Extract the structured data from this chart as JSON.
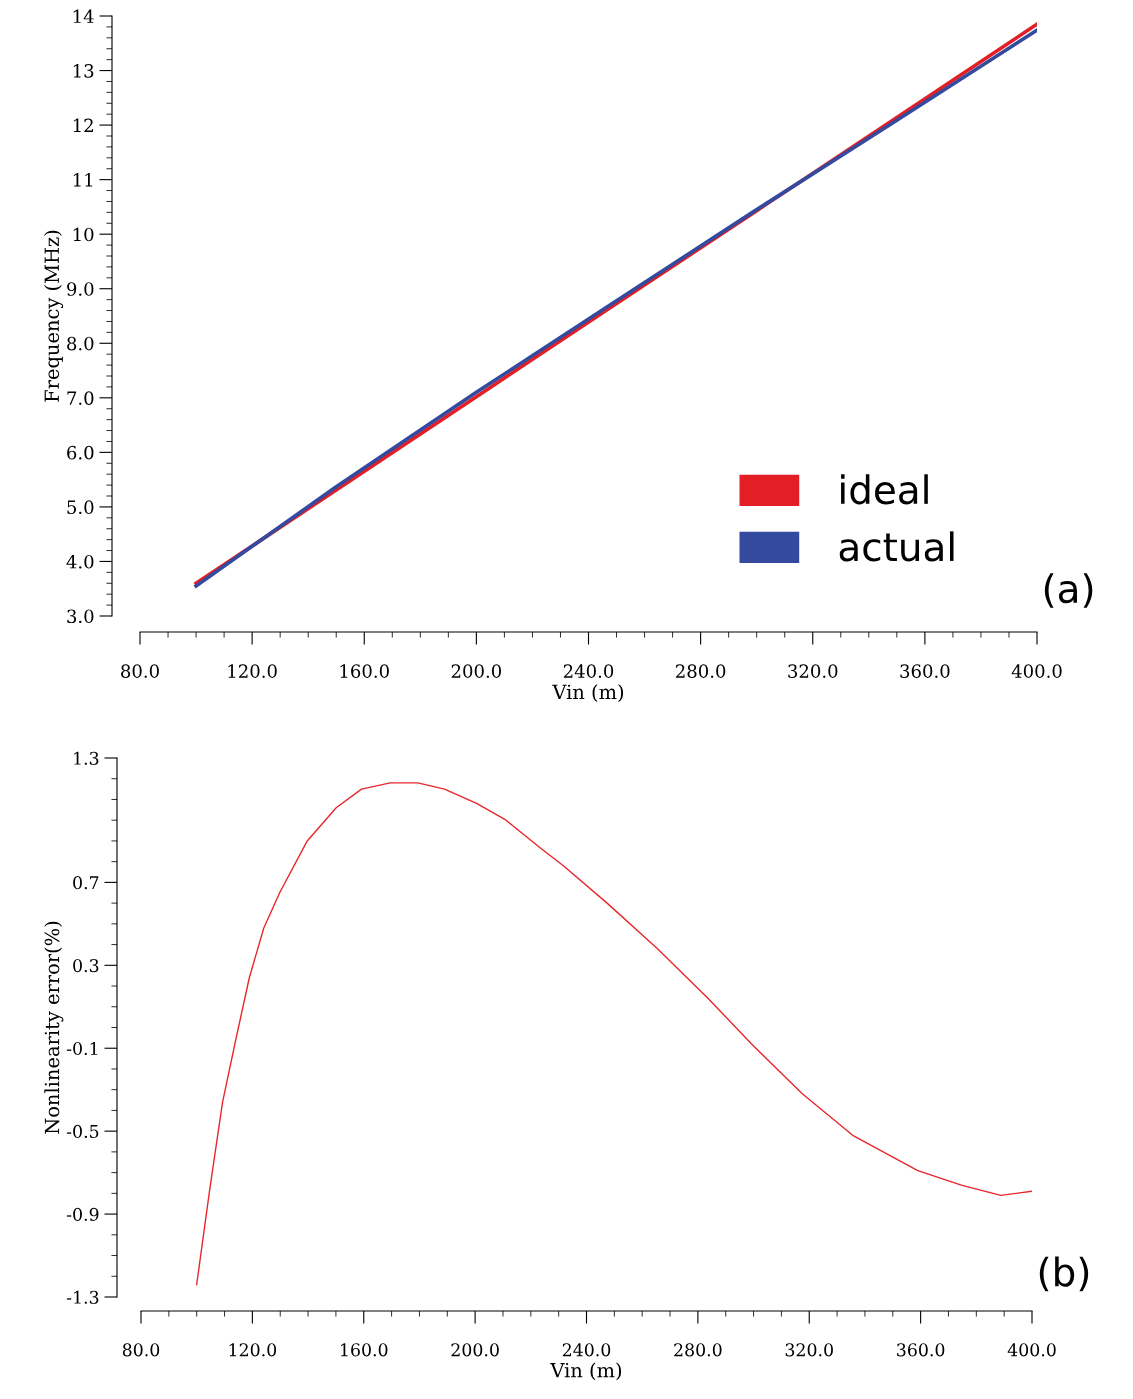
{
  "chart_data": [
    {
      "type": "line",
      "xlabel": "Vin (m)",
      "ylabel": "Frequency (MHz)",
      "annotations": [
        "(a)"
      ],
      "xlim": [
        80,
        400
      ],
      "xticks": [
        {
          "value": 80,
          "label": "80.0"
        },
        {
          "value": 120,
          "label": "120.0"
        },
        {
          "value": 160,
          "label": "160.0"
        },
        {
          "value": 200,
          "label": "200.0"
        },
        {
          "value": 240,
          "label": "240.0"
        },
        {
          "value": 280,
          "label": "280.0"
        },
        {
          "value": 320,
          "label": "320.0"
        },
        {
          "value": 360,
          "label": "360.0"
        },
        {
          "value": 400,
          "label": "400.0"
        }
      ],
      "ylim": [
        3,
        14
      ],
      "yticks": [
        {
          "value": 3,
          "label": "3.0"
        },
        {
          "value": 4,
          "label": "4.0"
        },
        {
          "value": 5,
          "label": "5.0"
        },
        {
          "value": 6,
          "label": "6.0"
        },
        {
          "value": 7,
          "label": "7.0"
        },
        {
          "value": 8,
          "label": "8.0"
        },
        {
          "value": 9,
          "label": "9.0"
        },
        10,
        11,
        12,
        13,
        14
      ],
      "x": [
        100,
        150,
        200,
        250,
        300,
        350,
        400
      ],
      "series": [
        {
          "name": "ideal",
          "color": "#e31e24",
          "values": [
            3.6,
            5.31,
            7.02,
            8.73,
            10.43,
            12.14,
            13.85
          ]
        },
        {
          "name": "actual",
          "color": "#334a9e",
          "values": [
            3.55,
            5.37,
            7.1,
            8.78,
            10.45,
            12.09,
            13.74
          ]
        }
      ],
      "legend": "bottom right",
      "grid": false,
      "marker": "none",
      "line_style": "solid"
    },
    {
      "type": "line",
      "xlabel": "Vin (m)",
      "ylabel": "Nonlinearity error(%)",
      "annotations": [
        "(b)"
      ],
      "xlim": [
        80,
        400
      ],
      "xticks": [
        {
          "value": 80,
          "label": "80.0"
        },
        {
          "value": 120,
          "label": "120.0"
        },
        {
          "value": 160,
          "label": "160.0"
        },
        {
          "value": 200,
          "label": "200.0"
        },
        {
          "value": 240,
          "label": "240.0"
        },
        {
          "value": 280,
          "label": "280.0"
        },
        {
          "value": 320,
          "label": "320.0"
        },
        {
          "value": 360,
          "label": "360.0"
        },
        {
          "value": 400,
          "label": "400.0"
        }
      ],
      "ylim": [
        -1.3,
        1.3
      ],
      "yticks": [
        1.3,
        0.7,
        0.3,
        -0.1,
        -0.5,
        -0.9,
        -1.3
      ],
      "x": [
        100,
        104.7,
        109.3,
        113.7,
        118.9,
        124.1,
        129.8,
        139.7,
        150.1,
        159.2,
        169.5,
        179.4,
        189,
        200.7,
        211.1,
        224,
        231.7,
        247.4,
        265.5,
        283.7,
        299.3,
        317.5,
        335.6,
        359,
        374.6,
        388.8,
        400
      ],
      "series": [
        {
          "color": "#e8262b",
          "values": [
            -1.24,
            -0.78,
            -0.36,
            -0.08,
            0.24,
            0.48,
            0.65,
            0.9,
            1.06,
            1.15,
            1.18,
            1.18,
            1.15,
            1.08,
            1.0,
            0.86,
            0.78,
            0.6,
            0.38,
            0.14,
            -0.08,
            -0.32,
            -0.52,
            -0.69,
            -0.76,
            -0.81,
            -0.79
          ]
        }
      ],
      "legend": false,
      "grid": false,
      "marker": "none",
      "line_style": "solid"
    }
  ]
}
